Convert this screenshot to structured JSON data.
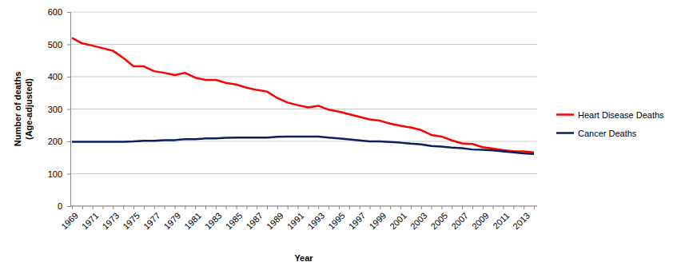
{
  "chart_data": {
    "type": "line",
    "xlabel": "Year",
    "ylabel": [
      "Number of deaths",
      "(Age-adjusted)"
    ],
    "categories": [
      "1969",
      null,
      "1971",
      null,
      "1973",
      null,
      "1975",
      null,
      "1977",
      null,
      "1979",
      null,
      "1981",
      null,
      "1983",
      null,
      "1985",
      null,
      "1987",
      null,
      "1989",
      null,
      "1991",
      null,
      "1993",
      null,
      "1995",
      null,
      "1997",
      null,
      "1999",
      null,
      "2001",
      null,
      "2003",
      null,
      "2005",
      null,
      "2007",
      null,
      "2009",
      null,
      "2011",
      null,
      "2013",
      null
    ],
    "series": [
      {
        "name": "Heart Disease Deaths",
        "color": "#ff0000",
        "values": [
          520,
          503,
          496,
          488,
          480,
          458,
          432,
          432,
          417,
          412,
          405,
          412,
          397,
          390,
          390,
          381,
          376,
          366,
          359,
          354,
          334,
          320,
          312,
          305,
          310,
          298,
          292,
          284,
          276,
          268,
          264,
          255,
          248,
          243,
          235,
          220,
          215,
          203,
          194,
          192,
          182,
          178,
          173,
          170,
          169,
          166
        ]
      },
      {
        "name": "Cancer Deaths",
        "color": "#0a1f5c",
        "values": [
          199,
          199,
          199,
          199,
          199,
          199,
          200,
          202,
          202,
          204,
          204,
          207,
          207,
          209,
          209,
          211,
          212,
          212,
          212,
          212,
          214,
          215,
          215,
          215,
          215,
          212,
          209,
          206,
          203,
          200,
          200,
          198,
          196,
          193,
          191,
          186,
          184,
          181,
          179,
          175,
          174,
          172,
          169,
          166,
          163,
          161
        ]
      }
    ],
    "ylim": [
      0,
      600
    ],
    "yticks": [
      0,
      100,
      200,
      300,
      400,
      500,
      600
    ],
    "grid": true,
    "legend": "right"
  }
}
